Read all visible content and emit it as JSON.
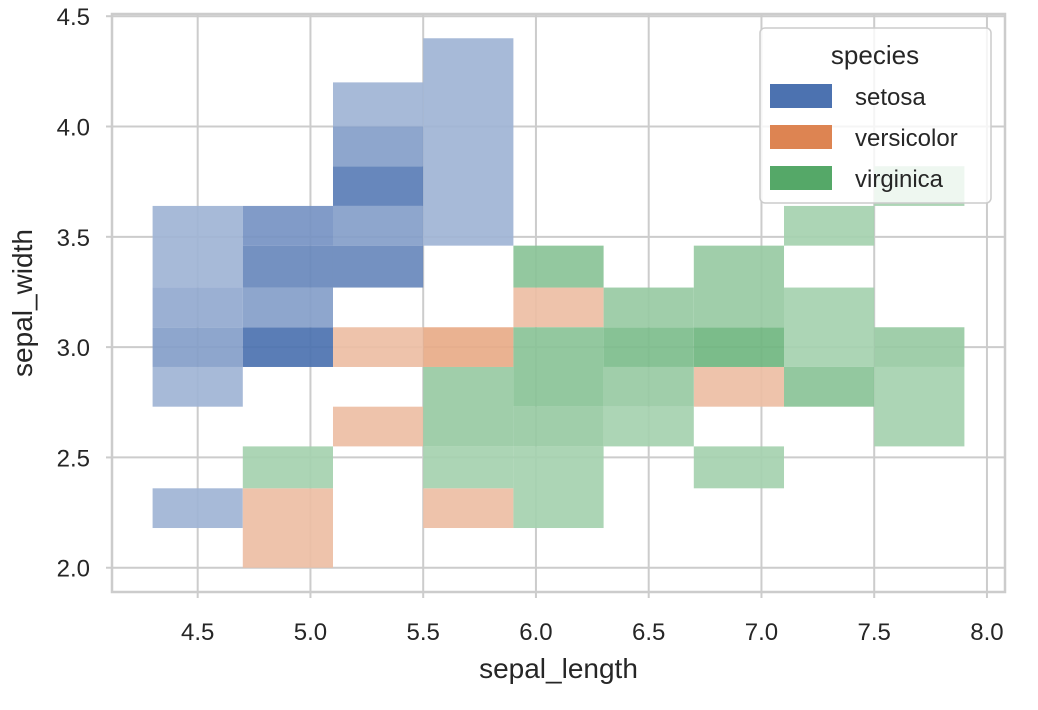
{
  "chart_data": {
    "type": "heatmap",
    "subtype": "2d-histogram",
    "xlabel": "sepal_length",
    "ylabel": "sepal_width",
    "xlim": [
      4.12,
      8.08
    ],
    "ylim": [
      1.89,
      4.51
    ],
    "x_ticks": [
      4.5,
      5.0,
      5.5,
      6.0,
      6.5,
      7.0,
      7.5,
      8.0
    ],
    "x_tick_labels": [
      "4.5",
      "5.0",
      "5.5",
      "6.0",
      "6.5",
      "7.0",
      "7.5",
      "8.0"
    ],
    "y_ticks": [
      2.0,
      2.5,
      3.0,
      3.5,
      4.0,
      4.5
    ],
    "y_tick_labels": [
      "2.0",
      "2.5",
      "3.0",
      "3.5",
      "4.0",
      "4.5"
    ],
    "grid": true,
    "legend": {
      "title": "species",
      "placement": "top-right",
      "entries": [
        {
          "label": "setosa",
          "color": "#4c72b0"
        },
        {
          "label": "versicolor",
          "color": "#dd8452"
        },
        {
          "label": "virginica",
          "color": "#55a868"
        }
      ]
    },
    "x_bin_edges": [
      4.3,
      4.7,
      5.1,
      5.5,
      5.9,
      6.3,
      6.7,
      7.1,
      7.5,
      7.9
    ],
    "y_bin_edges": [
      2.0,
      2.18,
      2.36,
      2.55,
      2.73,
      2.91,
      3.09,
      3.27,
      3.46,
      3.64,
      3.82,
      4.0,
      4.2,
      4.4
    ],
    "series": [
      {
        "name": "setosa",
        "color": "#4c72b0",
        "cells": [
          {
            "x": [
              4.3,
              4.7
            ],
            "y": [
              2.18,
              2.36
            ],
            "count": 1
          },
          {
            "x": [
              4.3,
              4.7
            ],
            "y": [
              2.73,
              2.91
            ],
            "count": 1
          },
          {
            "x": [
              4.3,
              4.7
            ],
            "y": [
              2.91,
              3.09
            ],
            "count": 3
          },
          {
            "x": [
              4.3,
              4.7
            ],
            "y": [
              3.09,
              3.27
            ],
            "count": 2
          },
          {
            "x": [
              4.3,
              4.7
            ],
            "y": [
              3.27,
              3.64
            ],
            "count": 1
          },
          {
            "x": [
              4.7,
              5.1
            ],
            "y": [
              2.91,
              3.09
            ],
            "count": 7
          },
          {
            "x": [
              4.7,
              5.1
            ],
            "y": [
              3.09,
              3.27
            ],
            "count": 3
          },
          {
            "x": [
              4.7,
              5.1
            ],
            "y": [
              3.27,
              3.46
            ],
            "count": 5
          },
          {
            "x": [
              4.7,
              5.1
            ],
            "y": [
              3.46,
              3.64
            ],
            "count": 4
          },
          {
            "x": [
              5.1,
              5.5
            ],
            "y": [
              3.27,
              3.46
            ],
            "count": 5
          },
          {
            "x": [
              5.1,
              5.5
            ],
            "y": [
              3.46,
              3.64
            ],
            "count": 3
          },
          {
            "x": [
              5.1,
              5.5
            ],
            "y": [
              3.64,
              3.82
            ],
            "count": 6
          },
          {
            "x": [
              5.1,
              5.5
            ],
            "y": [
              3.82,
              4.0
            ],
            "count": 3
          },
          {
            "x": [
              5.1,
              5.5
            ],
            "y": [
              4.0,
              4.2
            ],
            "count": 1
          },
          {
            "x": [
              5.5,
              5.9
            ],
            "y": [
              3.46,
              4.4
            ],
            "count": 1
          }
        ]
      },
      {
        "name": "versicolor",
        "color": "#dd8452",
        "cells": [
          {
            "x": [
              4.7,
              5.1
            ],
            "y": [
              2.0,
              2.36
            ],
            "count": 1
          },
          {
            "x": [
              5.1,
              5.5
            ],
            "y": [
              2.55,
              2.73
            ],
            "count": 1
          },
          {
            "x": [
              5.1,
              5.5
            ],
            "y": [
              2.91,
              3.09
            ],
            "count": 1
          },
          {
            "x": [
              5.5,
              5.9
            ],
            "y": [
              2.18,
              2.36
            ],
            "count": 1
          },
          {
            "x": [
              5.5,
              5.9
            ],
            "y": [
              2.91,
              3.09
            ],
            "count": 3
          },
          {
            "x": [
              5.9,
              6.3
            ],
            "y": [
              3.09,
              3.27
            ],
            "count": 1
          },
          {
            "x": [
              6.7,
              7.1
            ],
            "y": [
              2.73,
              2.91
            ],
            "count": 1
          }
        ]
      },
      {
        "name": "virginica",
        "color": "#55a868",
        "cells": [
          {
            "x": [
              4.7,
              5.1
            ],
            "y": [
              2.36,
              2.55
            ],
            "count": 1
          },
          {
            "x": [
              5.5,
              5.9
            ],
            "y": [
              2.36,
              2.55
            ],
            "count": 1
          },
          {
            "x": [
              5.5,
              5.9
            ],
            "y": [
              2.55,
              2.91
            ],
            "count": 2
          },
          {
            "x": [
              5.9,
              6.3
            ],
            "y": [
              2.18,
              2.55
            ],
            "count": 1
          },
          {
            "x": [
              5.9,
              6.3
            ],
            "y": [
              2.55,
              2.73
            ],
            "count": 2
          },
          {
            "x": [
              5.9,
              6.3
            ],
            "y": [
              2.73,
              3.09
            ],
            "count": 3
          },
          {
            "x": [
              5.9,
              6.3
            ],
            "y": [
              3.27,
              3.46
            ],
            "count": 3
          },
          {
            "x": [
              6.3,
              6.7
            ],
            "y": [
              2.55,
              2.73
            ],
            "count": 1
          },
          {
            "x": [
              6.3,
              6.7
            ],
            "y": [
              2.73,
              2.91
            ],
            "count": 2
          },
          {
            "x": [
              6.3,
              6.7
            ],
            "y": [
              2.91,
              3.09
            ],
            "count": 4
          },
          {
            "x": [
              6.3,
              6.7
            ],
            "y": [
              3.09,
              3.27
            ],
            "count": 2
          },
          {
            "x": [
              6.7,
              7.1
            ],
            "y": [
              2.36,
              2.55
            ],
            "count": 1
          },
          {
            "x": [
              6.7,
              7.1
            ],
            "y": [
              2.91,
              3.09
            ],
            "count": 5
          },
          {
            "x": [
              6.7,
              7.1
            ],
            "y": [
              3.09,
              3.46
            ],
            "count": 2
          },
          {
            "x": [
              7.1,
              7.5
            ],
            "y": [
              2.73,
              2.91
            ],
            "count": 3
          },
          {
            "x": [
              7.1,
              7.5
            ],
            "y": [
              2.91,
              3.27
            ],
            "count": 1
          },
          {
            "x": [
              7.1,
              7.5
            ],
            "y": [
              3.46,
              3.64
            ],
            "count": 1
          },
          {
            "x": [
              7.5,
              7.9
            ],
            "y": [
              2.55,
              2.91
            ],
            "count": 1
          },
          {
            "x": [
              7.5,
              7.9
            ],
            "y": [
              2.91,
              3.09
            ],
            "count": 2
          },
          {
            "x": [
              7.5,
              7.9
            ],
            "y": [
              3.64,
              3.82
            ],
            "count": 1
          }
        ]
      }
    ]
  }
}
